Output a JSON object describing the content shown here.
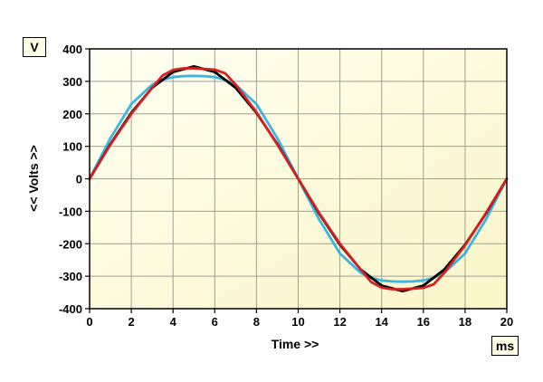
{
  "chart_data": {
    "type": "line",
    "title": "",
    "xlabel": "Time >>",
    "ylabel": "<< Volts >>",
    "x_unit": "ms",
    "y_unit": "V",
    "xlim": [
      0,
      20
    ],
    "ylim": [
      -400,
      400
    ],
    "x_ticks": [
      0,
      2,
      4,
      6,
      8,
      10,
      12,
      14,
      16,
      18,
      20
    ],
    "y_ticks": [
      400,
      300,
      200,
      100,
      0,
      -100,
      -200,
      -300,
      -400
    ],
    "grid": true,
    "legend": "none",
    "background_colors": [
      "#fffff2",
      "#fbf5c8"
    ],
    "series": [
      {
        "color": "#3ab4e0",
        "x": [
          0,
          1,
          2,
          3,
          3.5,
          4,
          4.5,
          5,
          5.5,
          6,
          6.5,
          7,
          8,
          9,
          10,
          11,
          12,
          13,
          13.5,
          14,
          14.5,
          15,
          15.5,
          16,
          16.5,
          17,
          18,
          19,
          20
        ],
        "y": [
          0,
          125,
          230,
          290,
          305,
          313,
          316,
          317,
          316,
          313,
          305,
          290,
          230,
          125,
          0,
          -125,
          -230,
          -290,
          -305,
          -313,
          -316,
          -317,
          -316,
          -313,
          -305,
          -290,
          -230,
          -125,
          0
        ]
      },
      {
        "color": "#000000",
        "x": [
          0,
          1,
          2,
          3,
          4,
          5,
          6,
          7,
          8,
          9,
          10,
          11,
          12,
          13,
          14,
          15,
          16,
          17,
          18,
          19,
          20
        ],
        "y": [
          0,
          107,
          203,
          280,
          329,
          346,
          329,
          280,
          203,
          107,
          0,
          -107,
          -203,
          -280,
          -329,
          -346,
          -329,
          -280,
          -203,
          -107,
          0
        ]
      },
      {
        "color": "#d42020",
        "x": [
          0,
          1,
          2,
          3,
          3.5,
          4,
          4.5,
          5,
          5.5,
          6,
          6.5,
          7,
          8,
          9,
          10,
          11,
          12,
          13,
          13.5,
          14,
          14.5,
          15,
          15.5,
          16,
          16.5,
          17,
          18,
          19,
          20
        ],
        "y": [
          0,
          105,
          200,
          280,
          318,
          335,
          340,
          340,
          338,
          336,
          325,
          290,
          205,
          105,
          0,
          -105,
          -200,
          -280,
          -318,
          -335,
          -340,
          -340,
          -338,
          -336,
          -325,
          -290,
          -205,
          -105,
          0
        ]
      }
    ]
  }
}
